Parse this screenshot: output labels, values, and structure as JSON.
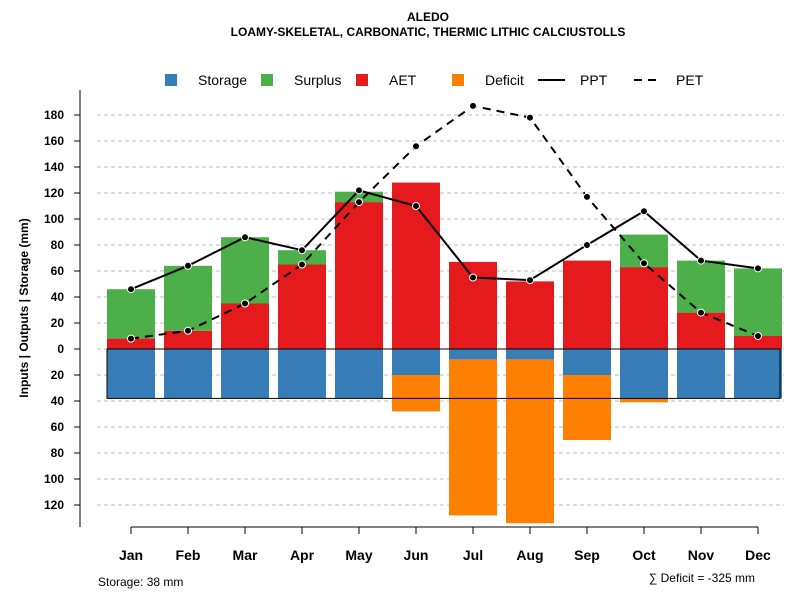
{
  "chart_data": {
    "type": "bar",
    "title": "ALEDO",
    "subtitle": "LOAMY-SKELETAL, CARBONATIC, THERMIC LITHIC CALCIUSTOLLS",
    "ylabel": "Inputs | Outputs | Storage     (mm)",
    "categories": [
      "Jan",
      "Feb",
      "Mar",
      "Apr",
      "May",
      "Jun",
      "Jul",
      "Aug",
      "Sep",
      "Oct",
      "Nov",
      "Dec"
    ],
    "y_tick_labels": [
      "180",
      "160",
      "140",
      "120",
      "100",
      "80",
      "60",
      "40",
      "20",
      "0",
      "20",
      "40",
      "60",
      "80",
      "100",
      "120"
    ],
    "y_tick_values": [
      180,
      160,
      140,
      120,
      100,
      80,
      60,
      40,
      20,
      0,
      -20,
      -40,
      -60,
      -80,
      -100,
      -120
    ],
    "ylim": [
      -135,
      195
    ],
    "grid": true,
    "legend_position": "top",
    "legend": [
      {
        "label": "Storage",
        "type": "square",
        "color": "#377EB8"
      },
      {
        "label": "Surplus",
        "type": "square",
        "color": "#4DAF4A"
      },
      {
        "label": "AET",
        "type": "square",
        "color": "#E41A1C"
      },
      {
        "label": "Deficit",
        "type": "square",
        "color": "#FF7F00"
      },
      {
        "label": "PPT",
        "type": "solid-line",
        "color": "#000000"
      },
      {
        "label": "PET",
        "type": "dashed-line",
        "color": "#000000"
      }
    ],
    "series": [
      {
        "name": "AET",
        "values": [
          8,
          14,
          35,
          65,
          113,
          128,
          67,
          52,
          68,
          63,
          28,
          10
        ]
      },
      {
        "name": "Surplus",
        "values": [
          38,
          50,
          51,
          11,
          8,
          0,
          0,
          0,
          0,
          25,
          40,
          52
        ]
      },
      {
        "name": "Storage",
        "values": [
          -38,
          -38,
          -38,
          -38,
          -38,
          -20,
          -8,
          -8,
          -20,
          -38,
          -38,
          -38
        ]
      },
      {
        "name": "Deficit",
        "values": [
          0,
          0,
          0,
          0,
          0,
          -28,
          -120,
          -126,
          -50,
          -3,
          0,
          0
        ]
      },
      {
        "name": "PPT",
        "values": [
          46,
          64,
          86,
          76,
          122,
          110,
          55,
          53,
          80,
          106,
          68,
          62
        ]
      },
      {
        "name": "PET",
        "values": [
          8,
          14,
          35,
          65,
          113,
          156,
          187,
          178,
          117,
          66,
          28,
          10
        ]
      }
    ],
    "storage_capacity": 38,
    "footnote_left": "Storage: 38 mm",
    "footnote_right": "∑ Deficit = -325 mm"
  },
  "colors": {
    "storage": "#377EB8",
    "surplus": "#4DAF4A",
    "aet": "#E41A1C",
    "deficit": "#FF7F00",
    "line": "#000000",
    "grid": "#BEBEBE"
  }
}
